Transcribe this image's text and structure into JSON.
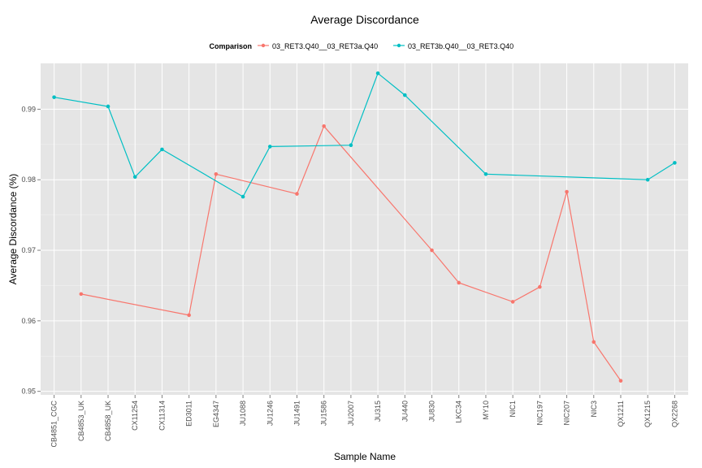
{
  "chart_data": {
    "type": "line",
    "title": "Average Discordance",
    "xlabel": "Sample Name",
    "ylabel": "Average Discordance (%)",
    "ylim": [
      0.9495,
      0.9965
    ],
    "yticks": [
      0.95,
      0.96,
      0.97,
      0.98,
      0.99
    ],
    "ytick_labels": [
      "0.95",
      "0.96",
      "0.97",
      "0.98",
      "0.99"
    ],
    "legend_title": "Comparison",
    "legend_position": "top",
    "grid": true,
    "categories": [
      "CB4851_CGC",
      "CB4853_UK",
      "CB4858_UK",
      "CX11254",
      "CX11314",
      "ED3011",
      "EG4347",
      "JU1088",
      "JU1246",
      "JU1491",
      "JU1586",
      "JU2007",
      "JU315",
      "JU440",
      "JU830",
      "LKC34",
      "MY10",
      "NIC1",
      "NIC197",
      "NIC207",
      "NIC3",
      "QX1211",
      "QX1215",
      "QX2268"
    ],
    "series": [
      {
        "name": "03_RET3.Q40__03_RET3a.Q40",
        "color": "#F8766D",
        "points": [
          {
            "x": "CB4853_UK",
            "y": 0.9638
          },
          {
            "x": "ED3011",
            "y": 0.9608
          },
          {
            "x": "EG4347",
            "y": 0.9808
          },
          {
            "x": "JU1491",
            "y": 0.978
          },
          {
            "x": "JU1586",
            "y": 0.9876
          },
          {
            "x": "JU830",
            "y": 0.97
          },
          {
            "x": "LKC34",
            "y": 0.9654
          },
          {
            "x": "NIC1",
            "y": 0.9627
          },
          {
            "x": "NIC197",
            "y": 0.9648
          },
          {
            "x": "NIC207",
            "y": 0.9783
          },
          {
            "x": "NIC3",
            "y": 0.957
          },
          {
            "x": "QX1211",
            "y": 0.9515
          }
        ]
      },
      {
        "name": "03_RET3b.Q40__03_RET3.Q40",
        "color": "#00BFC4",
        "points": [
          {
            "x": "CB4851_CGC",
            "y": 0.9917
          },
          {
            "x": "CB4858_UK",
            "y": 0.9904
          },
          {
            "x": "CX11254",
            "y": 0.9804
          },
          {
            "x": "CX11314",
            "y": 0.9843
          },
          {
            "x": "JU1088",
            "y": 0.9776
          },
          {
            "x": "JU1246",
            "y": 0.9847
          },
          {
            "x": "JU2007",
            "y": 0.9849
          },
          {
            "x": "JU315",
            "y": 0.9951
          },
          {
            "x": "JU440",
            "y": 0.992
          },
          {
            "x": "MY10",
            "y": 0.9808
          },
          {
            "x": "QX1215",
            "y": 0.98
          },
          {
            "x": "QX2268",
            "y": 0.9824
          }
        ]
      }
    ]
  }
}
